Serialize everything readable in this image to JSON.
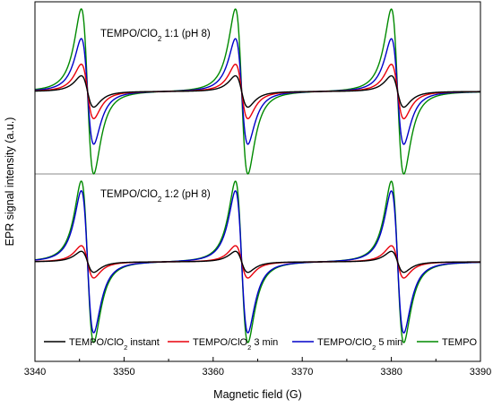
{
  "chart_data": {
    "type": "line",
    "xlabel": "Magnetic field (G)",
    "ylabel": "EPR signal intensity (a.u.)",
    "xlim": [
      3340,
      3390
    ],
    "x_ticks": [
      "3340",
      "3350",
      "3360",
      "3370",
      "3380",
      "3390"
    ],
    "y_ticks_shown": false,
    "grid": false,
    "legend_position": "bottom",
    "panels": [
      {
        "label": {
          "main": "TEMPO/ClO",
          "sub": "2",
          "rest": " 1:1 (pH 8)"
        },
        "position": "top",
        "series": [
          {
            "name": {
              "main": "TEMPO/ClO",
              "sub": "2",
              "rest": " instant"
            },
            "color": "#000000",
            "line_centers_G": [
              3345.9,
              3363.2,
              3380.7
            ],
            "relative_amplitude": 0.19
          },
          {
            "name": {
              "main": "TEMPO/ClO",
              "sub": "2",
              "rest": " 3 min"
            },
            "color": "#e8000b",
            "line_centers_G": [
              3345.9,
              3363.2,
              3380.7
            ],
            "relative_amplitude": 0.33
          },
          {
            "name": {
              "main": "TEMPO/ClO",
              "sub": "2",
              "rest": " 5 min"
            },
            "color": "#0000c8",
            "line_centers_G": [
              3345.9,
              3363.2,
              3380.7
            ],
            "relative_amplitude": 0.64
          },
          {
            "name": {
              "main": "TEMPO"
            },
            "color": "#008a00",
            "line_centers_G": [
              3345.9,
              3363.2,
              3380.7
            ],
            "relative_amplitude": 1.0
          }
        ]
      },
      {
        "label": {
          "main": "TEMPO/ClO",
          "sub": "2",
          "rest": " 1:2 (pH 8)"
        },
        "position": "bottom",
        "series": [
          {
            "name": {
              "main": "TEMPO/ClO",
              "sub": "2",
              "rest": " instant"
            },
            "color": "#000000",
            "line_centers_G": [
              3345.9,
              3363.2,
              3380.7
            ],
            "relative_amplitude": 0.13
          },
          {
            "name": {
              "main": "TEMPO/ClO",
              "sub": "2",
              "rest": " 3 min"
            },
            "color": "#e8000b",
            "line_centers_G": [
              3345.9,
              3363.2,
              3380.7
            ],
            "relative_amplitude": 0.2
          },
          {
            "name": {
              "main": "TEMPO/ClO",
              "sub": "2",
              "rest": " 5 min"
            },
            "color": "#0000c8",
            "line_centers_G": [
              3345.9,
              3363.2,
              3380.7
            ],
            "relative_amplitude": 0.88
          },
          {
            "name": {
              "main": "TEMPO"
            },
            "color": "#008a00",
            "line_centers_G": [
              3345.9,
              3363.2,
              3380.7
            ],
            "relative_amplitude": 1.0
          }
        ]
      }
    ]
  }
}
